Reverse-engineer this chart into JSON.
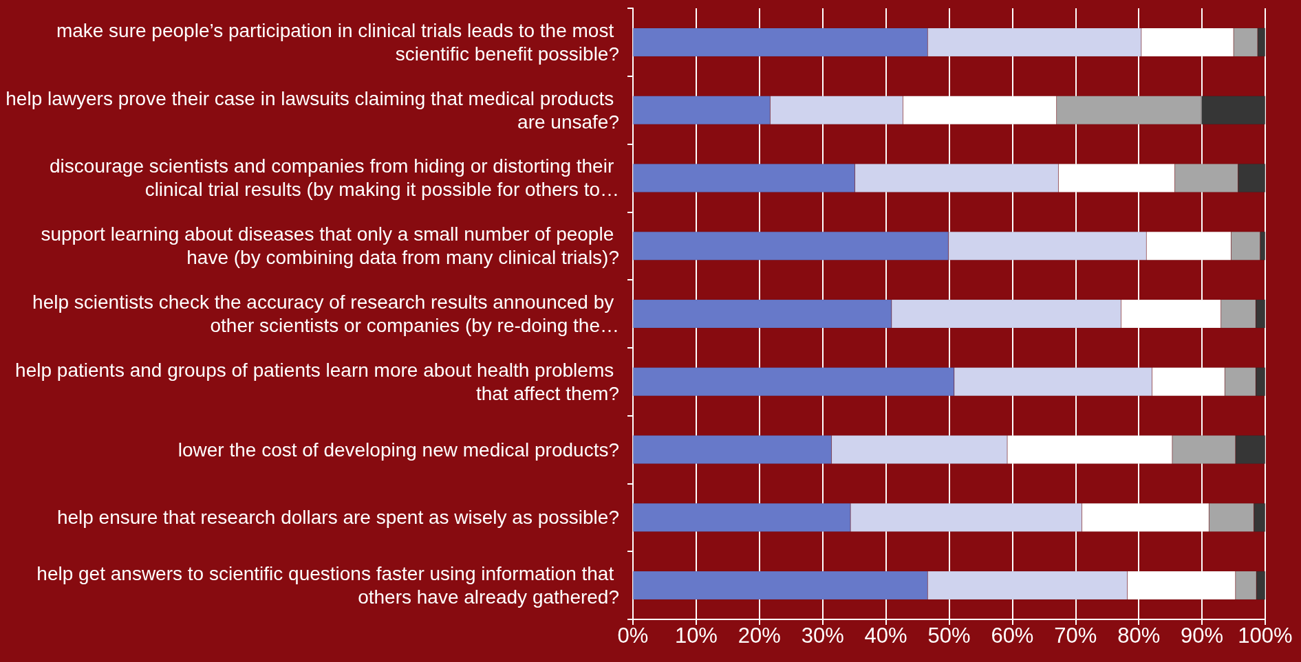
{
  "chart_data": {
    "type": "bar",
    "orientation": "horizontal",
    "stacked": true,
    "grid": "x",
    "categories": [
      "make sure people’s participation in clinical trials leads to the most scientific benefit possible?",
      "help lawyers prove their case in lawsuits claiming that medical products are unsafe?",
      "discourage scientists and companies from hiding or distorting their clinical trial results (by making it possible for others to…",
      "support learning about diseases that only a small number of people have (by combining data from many clinical trials)?",
      "help scientists check the accuracy of research results announced by other scientists or companies (by re-doing the…",
      "help patients and groups of patients learn more about health problems that affect them?",
      "lower the cost of developing new medical products?",
      "help ensure that research dollars are spent as wisely as possible?",
      "help get answers to scientific questions faster using information that others have already gathered?"
    ],
    "series": [
      {
        "color": "#6779c9",
        "values": [
          46.6,
          21.7,
          35.1,
          49.9,
          40.9,
          50.8,
          31.4,
          34.4,
          46.6
        ]
      },
      {
        "color": "#cfd3ee",
        "values": [
          33.8,
          21.0,
          32.2,
          31.3,
          36.3,
          31.3,
          27.8,
          36.6,
          31.6
        ]
      },
      {
        "color": "#ffffff",
        "values": [
          14.6,
          24.3,
          18.4,
          13.4,
          15.8,
          11.5,
          26.1,
          20.1,
          17.1
        ]
      },
      {
        "color": "#a6a6a6",
        "values": [
          3.8,
          22.9,
          10.0,
          4.6,
          5.5,
          4.9,
          10.0,
          7.1,
          3.3
        ]
      },
      {
        "color": "#363636",
        "values": [
          1.2,
          10.1,
          4.3,
          0.8,
          1.5,
          1.5,
          4.7,
          1.8,
          1.4
        ]
      }
    ],
    "xlim": [
      0,
      100
    ],
    "xticks": [
      {
        "value": 0,
        "label": "0%"
      },
      {
        "value": 10,
        "label": "10%"
      },
      {
        "value": 20,
        "label": "20%"
      },
      {
        "value": 30,
        "label": "30%"
      },
      {
        "value": 40,
        "label": "40%"
      },
      {
        "value": 50,
        "label": "50%"
      },
      {
        "value": 60,
        "label": "60%"
      },
      {
        "value": 70,
        "label": "70%"
      },
      {
        "value": 80,
        "label": "80%"
      },
      {
        "value": 90,
        "label": "90%"
      },
      {
        "value": 100,
        "label": "100%"
      }
    ]
  }
}
